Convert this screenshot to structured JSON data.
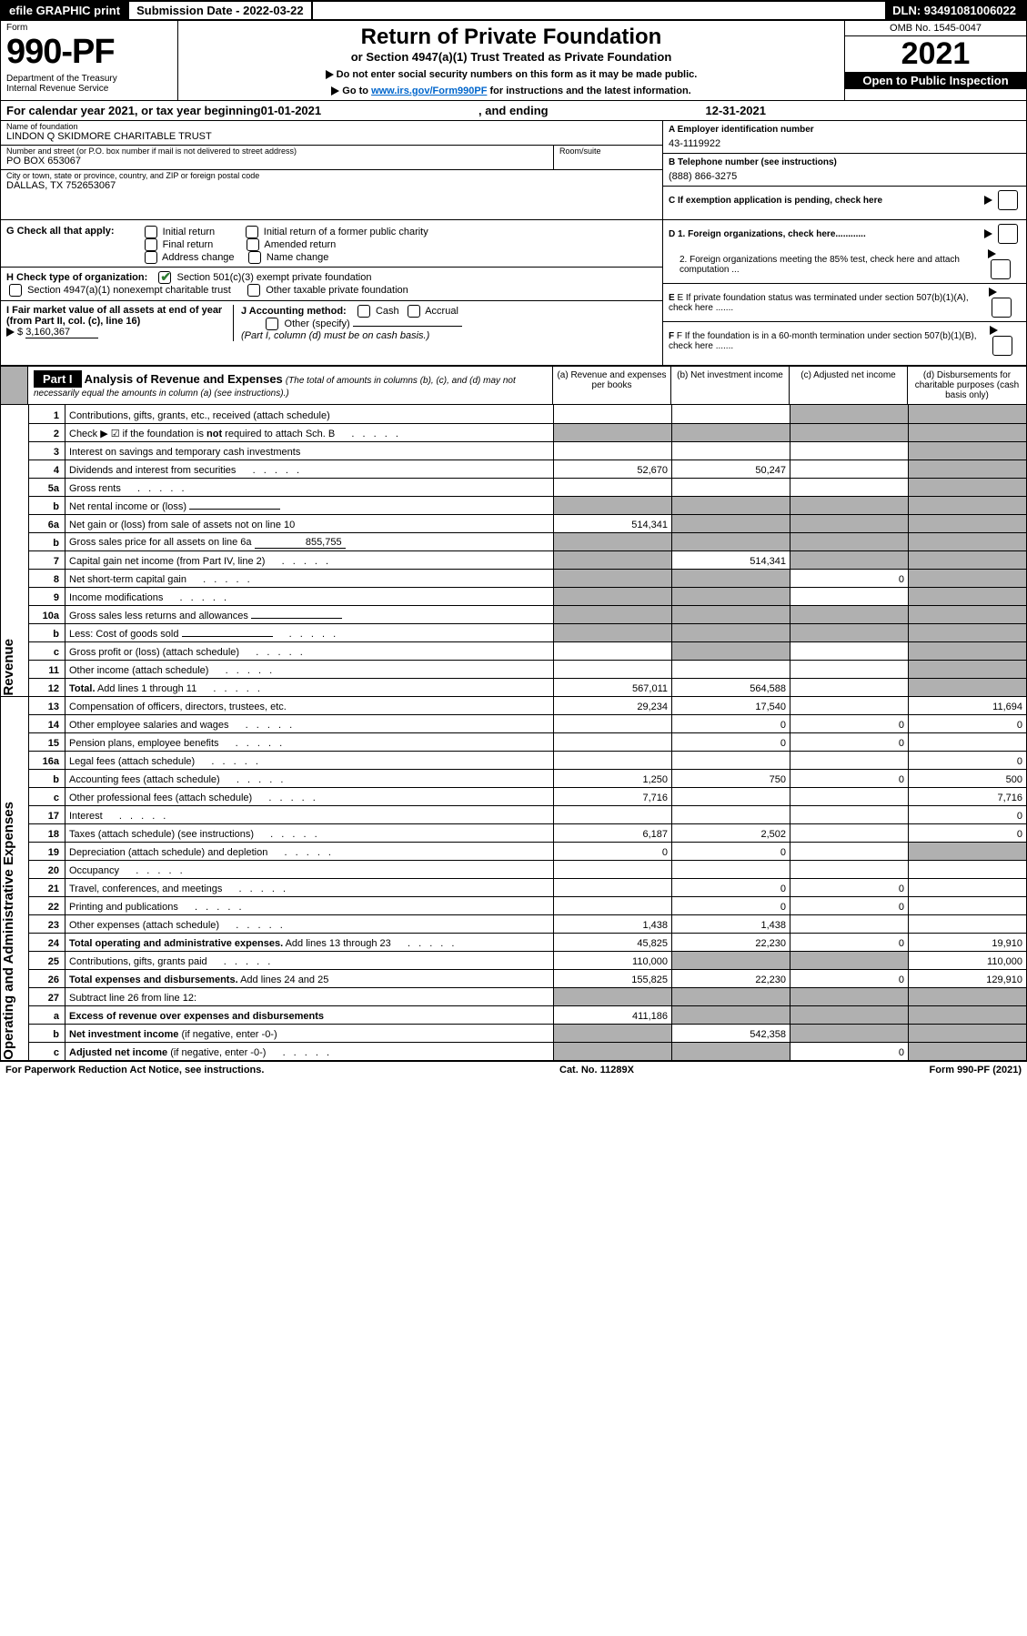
{
  "topbar": {
    "efile": "efile GRAPHIC print",
    "subdate_label": "Submission Date - 2022-03-22",
    "dln": "DLN: 93491081006022"
  },
  "header": {
    "form_word": "Form",
    "form_num": "990-PF",
    "dept": "Department of the Treasury",
    "irs": "Internal Revenue Service",
    "title": "Return of Private Foundation",
    "subtitle": "or Section 4947(a)(1) Trust Treated as Private Foundation",
    "note1": "Do not enter social security numbers on this form as it may be made public.",
    "note2_prefix": "Go to ",
    "note2_link": "www.irs.gov/Form990PF",
    "note2_suffix": " for instructions and the latest information.",
    "omb": "OMB No. 1545-0047",
    "year": "2021",
    "inspect": "Open to Public Inspection"
  },
  "cal": {
    "prefix": "For calendar year 2021, or tax year beginning ",
    "begin": "01-01-2021",
    "mid": " , and ending ",
    "end": "12-31-2021"
  },
  "name": {
    "name_lbl": "Name of foundation",
    "name_val": "LINDON Q SKIDMORE CHARITABLE TRUST",
    "addr_lbl": "Number and street (or P.O. box number if mail is not delivered to street address)",
    "addr_val": "PO BOX 653067",
    "room_lbl": "Room/suite",
    "city_lbl": "City or town, state or province, country, and ZIP or foreign postal code",
    "city_val": "DALLAS, TX  752653067",
    "a_lbl": "A Employer identification number",
    "a_val": "43-1119922",
    "b_lbl": "B Telephone number (see instructions)",
    "b_val": "(888) 866-3275",
    "c_lbl": "C If exemption application is pending, check here"
  },
  "checks": {
    "g_lbl": "G Check all that apply:",
    "g_initial": "Initial return",
    "g_initial_former": "Initial return of a former public charity",
    "g_final": "Final return",
    "g_amended": "Amended return",
    "g_address": "Address change",
    "g_name": "Name change",
    "h_lbl": "H Check type of organization:",
    "h_501c3": "Section 501(c)(3) exempt private foundation",
    "h_4947": "Section 4947(a)(1) nonexempt charitable trust",
    "h_other": "Other taxable private foundation",
    "i_lbl": "I Fair market value of all assets at end of year (from Part II, col. (c), line 16)",
    "i_val": "3,160,367",
    "j_lbl": "J Accounting method:",
    "j_cash": "Cash",
    "j_accrual": "Accrual",
    "j_other": "Other (specify)",
    "j_note": "(Part I, column (d) must be on cash basis.)",
    "d1": "D 1. Foreign organizations, check here............",
    "d2": "2. Foreign organizations meeting the 85% test, check here and attach computation ...",
    "e_lbl": "E  If private foundation status was terminated under section 507(b)(1)(A), check here .......",
    "f_lbl": "F  If the foundation is in a 60-month termination under section 507(b)(1)(B), check here ......."
  },
  "part1": {
    "label": "Part I",
    "title": "Analysis of Revenue and Expenses",
    "title_note": "(The total of amounts in columns (b), (c), and (d) may not necessarily equal the amounts in column (a) (see instructions).)",
    "col_a": "(a)  Revenue and expenses per books",
    "col_b": "(b)  Net investment income",
    "col_c": "(c)  Adjusted net income",
    "col_d": "(d)  Disbursements for charitable purposes (cash basis only)"
  },
  "vside": {
    "revenue": "Revenue",
    "expenses": "Operating and Administrative Expenses"
  },
  "rows": [
    {
      "ln": "1",
      "desc": "Contributions, gifts, grants, etc., received (attach schedule)",
      "a": "",
      "b": "",
      "c": "g",
      "d": "g"
    },
    {
      "ln": "2",
      "desc": "Check ▶ ☑ if the foundation is <b>not</b> required to attach Sch. B",
      "a": "g",
      "b": "g",
      "c": "g",
      "d": "g",
      "dotted": true
    },
    {
      "ln": "3",
      "desc": "Interest on savings and temporary cash investments",
      "a": "",
      "b": "",
      "c": "",
      "d": "g"
    },
    {
      "ln": "4",
      "desc": "Dividends and interest from securities",
      "a": "52,670",
      "b": "50,247",
      "c": "",
      "d": "g",
      "dotted": true
    },
    {
      "ln": "5a",
      "desc": "Gross rents",
      "a": "",
      "b": "",
      "c": "",
      "d": "g",
      "dotted": true
    },
    {
      "ln": "b",
      "desc": "Net rental income or (loss)",
      "a": "g",
      "b": "g",
      "c": "g",
      "d": "g",
      "inline": true
    },
    {
      "ln": "6a",
      "desc": "Net gain or (loss) from sale of assets not on line 10",
      "a": "514,341",
      "b": "g",
      "c": "g",
      "d": "g"
    },
    {
      "ln": "b",
      "desc": "Gross sales price for all assets on line 6a",
      "a": "g",
      "b": "g",
      "c": "g",
      "d": "g",
      "inlineval": "855,755"
    },
    {
      "ln": "7",
      "desc": "Capital gain net income (from Part IV, line 2)",
      "a": "g",
      "b": "514,341",
      "c": "g",
      "d": "g",
      "dotted": true
    },
    {
      "ln": "8",
      "desc": "Net short-term capital gain",
      "a": "g",
      "b": "g",
      "c": "0",
      "d": "g",
      "dotted": true
    },
    {
      "ln": "9",
      "desc": "Income modifications",
      "a": "g",
      "b": "g",
      "c": "",
      "d": "g",
      "dotted": true
    },
    {
      "ln": "10a",
      "desc": "Gross sales less returns and allowances",
      "a": "g",
      "b": "g",
      "c": "g",
      "d": "g",
      "inline": true
    },
    {
      "ln": "b",
      "desc": "Less: Cost of goods sold",
      "a": "g",
      "b": "g",
      "c": "g",
      "d": "g",
      "inline": true,
      "dotted": true
    },
    {
      "ln": "c",
      "desc": "Gross profit or (loss) (attach schedule)",
      "a": "",
      "b": "g",
      "c": "",
      "d": "g",
      "dotted": true
    },
    {
      "ln": "11",
      "desc": "Other income (attach schedule)",
      "a": "",
      "b": "",
      "c": "",
      "d": "g",
      "dotted": true
    },
    {
      "ln": "12",
      "desc": "<b>Total.</b> Add lines 1 through 11",
      "a": "567,011",
      "b": "564,588",
      "c": "",
      "d": "g",
      "dotted": true
    },
    {
      "ln": "13",
      "desc": "Compensation of officers, directors, trustees, etc.",
      "a": "29,234",
      "b": "17,540",
      "c": "",
      "d": "11,694"
    },
    {
      "ln": "14",
      "desc": "Other employee salaries and wages",
      "a": "",
      "b": "0",
      "c": "0",
      "d": "0",
      "dotted": true
    },
    {
      "ln": "15",
      "desc": "Pension plans, employee benefits",
      "a": "",
      "b": "0",
      "c": "0",
      "d": "",
      "dotted": true
    },
    {
      "ln": "16a",
      "desc": "Legal fees (attach schedule)",
      "a": "",
      "b": "",
      "c": "",
      "d": "0",
      "dotted": true
    },
    {
      "ln": "b",
      "desc": "Accounting fees (attach schedule)",
      "a": "1,250",
      "b": "750",
      "c": "0",
      "d": "500",
      "dotted": true
    },
    {
      "ln": "c",
      "desc": "Other professional fees (attach schedule)",
      "a": "7,716",
      "b": "",
      "c": "",
      "d": "7,716",
      "dotted": true
    },
    {
      "ln": "17",
      "desc": "Interest",
      "a": "",
      "b": "",
      "c": "",
      "d": "0",
      "dotted": true
    },
    {
      "ln": "18",
      "desc": "Taxes (attach schedule) (see instructions)",
      "a": "6,187",
      "b": "2,502",
      "c": "",
      "d": "0",
      "dotted": true
    },
    {
      "ln": "19",
      "desc": "Depreciation (attach schedule) and depletion",
      "a": "0",
      "b": "0",
      "c": "",
      "d": "g",
      "dotted": true
    },
    {
      "ln": "20",
      "desc": "Occupancy",
      "a": "",
      "b": "",
      "c": "",
      "d": "",
      "dotted": true
    },
    {
      "ln": "21",
      "desc": "Travel, conferences, and meetings",
      "a": "",
      "b": "0",
      "c": "0",
      "d": "",
      "dotted": true
    },
    {
      "ln": "22",
      "desc": "Printing and publications",
      "a": "",
      "b": "0",
      "c": "0",
      "d": "",
      "dotted": true
    },
    {
      "ln": "23",
      "desc": "Other expenses (attach schedule)",
      "a": "1,438",
      "b": "1,438",
      "c": "",
      "d": "",
      "dotted": true
    },
    {
      "ln": "24",
      "desc": "<b>Total operating and administrative expenses.</b> Add lines 13 through 23",
      "a": "45,825",
      "b": "22,230",
      "c": "0",
      "d": "19,910",
      "dotted": true
    },
    {
      "ln": "25",
      "desc": "Contributions, gifts, grants paid",
      "a": "110,000",
      "b": "g",
      "c": "g",
      "d": "110,000",
      "dotted": true
    },
    {
      "ln": "26",
      "desc": "<b>Total expenses and disbursements.</b> Add lines 24 and 25",
      "a": "155,825",
      "b": "22,230",
      "c": "0",
      "d": "129,910"
    },
    {
      "ln": "27",
      "desc": "Subtract line 26 from line 12:",
      "a": "g",
      "b": "g",
      "c": "g",
      "d": "g"
    },
    {
      "ln": "a",
      "desc": "<b>Excess of revenue over expenses and disbursements</b>",
      "a": "411,186",
      "b": "g",
      "c": "g",
      "d": "g"
    },
    {
      "ln": "b",
      "desc": "<b>Net investment income</b> (if negative, enter -0-)",
      "a": "g",
      "b": "542,358",
      "c": "g",
      "d": "g"
    },
    {
      "ln": "c",
      "desc": "<b>Adjusted net income</b> (if negative, enter -0-)",
      "a": "g",
      "b": "g",
      "c": "0",
      "d": "g",
      "dotted": true
    }
  ],
  "footer": {
    "left": "For Paperwork Reduction Act Notice, see instructions.",
    "center": "Cat. No. 11289X",
    "right": "Form 990-PF (2021)"
  }
}
